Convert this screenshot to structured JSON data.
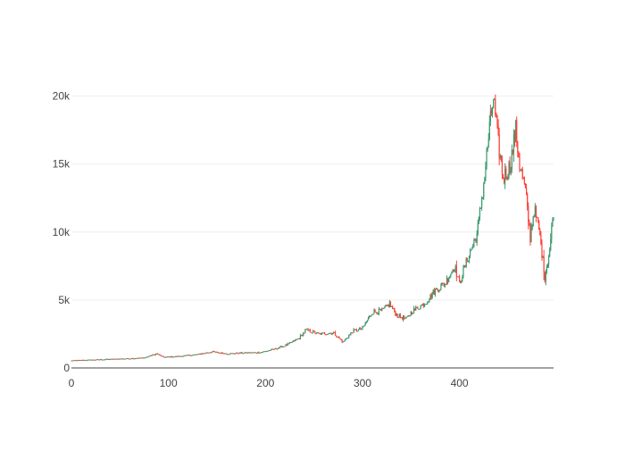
{
  "chart_data": {
    "type": "candlestick",
    "title": "",
    "xlabel": "",
    "ylabel": "",
    "xlim": [
      0,
      497
    ],
    "ylim": [
      0,
      20500
    ],
    "grid": "horizontal",
    "x_ticks": [
      {
        "value": 0,
        "label": "0"
      },
      {
        "value": 100,
        "label": "100"
      },
      {
        "value": 200,
        "label": "200"
      },
      {
        "value": 300,
        "label": "300"
      },
      {
        "value": 400,
        "label": "400"
      }
    ],
    "y_ticks": [
      {
        "value": 0,
        "label": "0"
      },
      {
        "value": 5000,
        "label": "5k"
      },
      {
        "value": 10000,
        "label": "10k"
      },
      {
        "value": 15000,
        "label": "15k"
      },
      {
        "value": 20000,
        "label": "20k"
      }
    ],
    "colors": {
      "increasing": "#3d9970",
      "decreasing": "#ff4136",
      "grid": "#eeeeee",
      "axis": "#444444"
    },
    "anchors": [
      [
        0,
        550
      ],
      [
        20,
        600
      ],
      [
        40,
        650
      ],
      [
        60,
        700
      ],
      [
        75,
        750
      ],
      [
        88,
        1050
      ],
      [
        95,
        800
      ],
      [
        110,
        850
      ],
      [
        130,
        1000
      ],
      [
        145,
        1200
      ],
      [
        160,
        1050
      ],
      [
        175,
        1100
      ],
      [
        195,
        1150
      ],
      [
        210,
        1400
      ],
      [
        222,
        1700
      ],
      [
        235,
        2200
      ],
      [
        242,
        2800
      ],
      [
        255,
        2500
      ],
      [
        270,
        2600
      ],
      [
        280,
        1900
      ],
      [
        290,
        2700
      ],
      [
        300,
        2900
      ],
      [
        310,
        4100
      ],
      [
        320,
        4200
      ],
      [
        328,
        4700
      ],
      [
        335,
        3900
      ],
      [
        345,
        3600
      ],
      [
        352,
        4200
      ],
      [
        365,
        4800
      ],
      [
        375,
        5700
      ],
      [
        385,
        6200
      ],
      [
        395,
        7500
      ],
      [
        400,
        6200
      ],
      [
        408,
        8000
      ],
      [
        418,
        9800
      ],
      [
        425,
        13500
      ],
      [
        430,
        17000
      ],
      [
        435,
        19900
      ],
      [
        440,
        16500
      ],
      [
        445,
        14000
      ],
      [
        452,
        14800
      ],
      [
        458,
        17500
      ],
      [
        462,
        15000
      ],
      [
        468,
        13000
      ],
      [
        473,
        9600
      ],
      [
        477,
        11700
      ],
      [
        482,
        10200
      ],
      [
        488,
        6700
      ],
      [
        493,
        8700
      ],
      [
        497,
        11600
      ]
    ]
  }
}
